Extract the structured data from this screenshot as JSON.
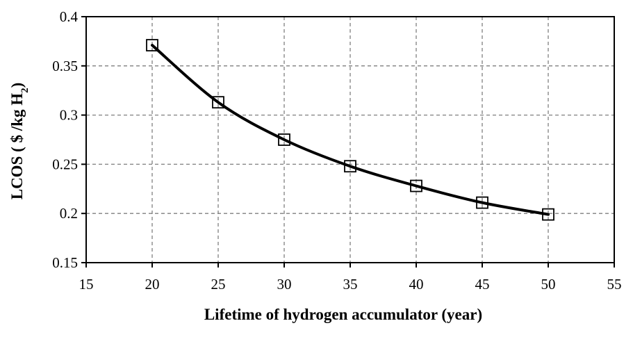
{
  "chart_data": {
    "type": "line",
    "title": "",
    "xlabel": "Lifetime of hydrogen accumulator (year)",
    "ylabel": "LCOS ( $ /kg H",
    "ylabel_subscript": "2",
    "ylabel_suffix": ")",
    "xlim": [
      15,
      55
    ],
    "ylim": [
      0.15,
      0.4
    ],
    "x_ticks": [
      15,
      20,
      25,
      30,
      35,
      40,
      45,
      50,
      55
    ],
    "y_ticks": [
      0.15,
      0.2,
      0.25,
      0.3,
      0.35,
      0.4
    ],
    "x_tick_labels": [
      "15",
      "20",
      "25",
      "30",
      "35",
      "40",
      "45",
      "50",
      "55"
    ],
    "y_tick_labels": [
      "0.15",
      "0.2",
      "0.25",
      "0.3",
      "0.35",
      "0.4"
    ],
    "grid": true,
    "legend": "none",
    "marker": "square-open",
    "line_color": "#000000",
    "series": [
      {
        "x": [
          20,
          25,
          30,
          35,
          40,
          45,
          50
        ],
        "values": [
          0.371,
          0.313,
          0.275,
          0.248,
          0.228,
          0.211,
          0.199
        ]
      }
    ]
  }
}
